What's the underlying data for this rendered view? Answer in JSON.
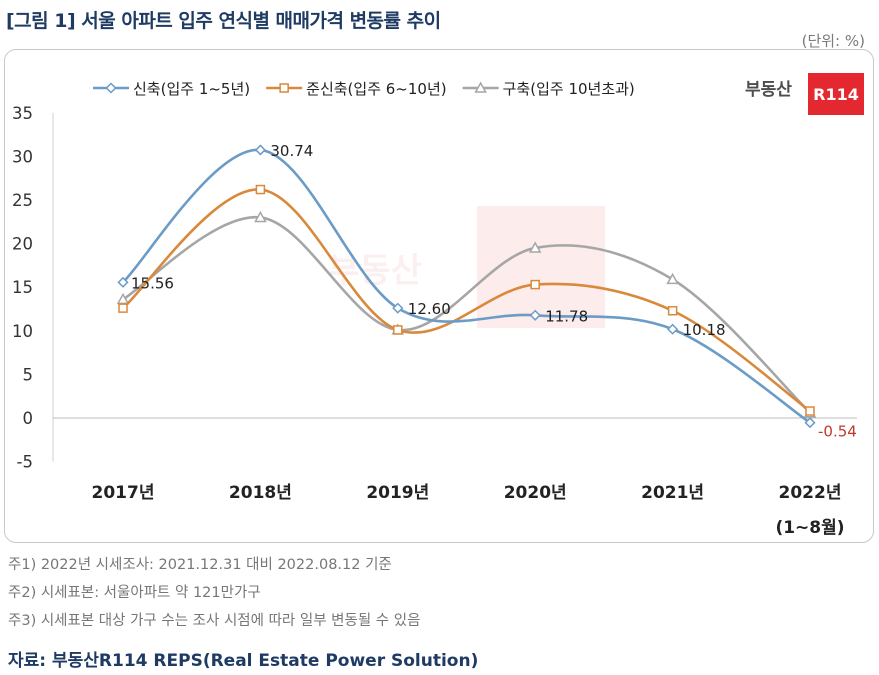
{
  "header": {
    "title": "[그림 1] 서울 아파트 입주 연식별 매매가격 변동률 추이",
    "unit": "(단위: %)"
  },
  "logo": {
    "text": "부동산",
    "badge": "R114",
    "badge_color": "#e3282f"
  },
  "chart_data": {
    "type": "line",
    "categories": [
      "2017년",
      "2018년",
      "2019년",
      "2020년",
      "2021년",
      "2022년"
    ],
    "category_sublabels": [
      "",
      "",
      "",
      "",
      "",
      "(1~8월)"
    ],
    "ylim": [
      -5,
      35
    ],
    "yticks": [
      -5,
      0,
      5,
      10,
      15,
      20,
      25,
      30,
      35
    ],
    "smooth": true,
    "legend_position": "top-left",
    "series": [
      {
        "name": "신축(입주 1~5년)",
        "color": "#6b9cc7",
        "marker": "diamond",
        "values": [
          15.56,
          30.74,
          12.6,
          11.78,
          10.18,
          -0.54
        ],
        "labels": [
          "15.56",
          "30.74",
          "12.60",
          "11.78",
          "10.18",
          "-0.54"
        ]
      },
      {
        "name": "준신축(입주 6~10년)",
        "color": "#d9893c",
        "marker": "square",
        "values": [
          12.6,
          26.2,
          10.1,
          15.3,
          12.3,
          0.8
        ]
      },
      {
        "name": "구축(입주 10년초과)",
        "color": "#a6a6a6",
        "marker": "triangle",
        "values": [
          13.6,
          23.0,
          10.1,
          19.5,
          15.9,
          0.6
        ]
      }
    ],
    "negative_label_color": "#c0392b"
  },
  "notes": [
    "주1) 2022년 시세조사: 2021.12.31 대비 2022.08.12 기준",
    "주2) 시세표본: 서울아파트 약 121만가구",
    "주3) 시세표본 대상 가구 수는 조사 시점에 따라 일부 변동될 수 있음"
  ],
  "source": "자료: 부동산R114 REPS(Real Estate Power Solution)"
}
